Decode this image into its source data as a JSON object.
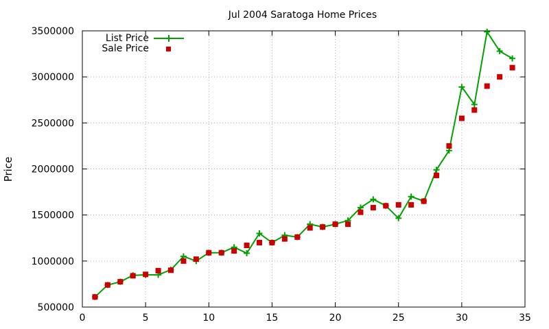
{
  "chart_data": {
    "type": "line",
    "title": "Jul 2004 Saratoga Home Prices",
    "xlabel": "",
    "ylabel": "Price",
    "xlim": [
      0,
      35
    ],
    "ylim": [
      500000,
      3500000
    ],
    "x_ticks": [
      0,
      5,
      10,
      15,
      20,
      25,
      30,
      35
    ],
    "y_ticks": [
      500000,
      1000000,
      1500000,
      2000000,
      2500000,
      3000000,
      3500000
    ],
    "grid": true,
    "legend_position": "top-left",
    "x": [
      1,
      2,
      3,
      4,
      5,
      6,
      7,
      8,
      9,
      10,
      11,
      12,
      13,
      14,
      15,
      16,
      17,
      18,
      19,
      20,
      21,
      22,
      23,
      24,
      25,
      26,
      27,
      28,
      29,
      30,
      31,
      32,
      33,
      34
    ],
    "series": [
      {
        "name": "List Price",
        "style": "line-points",
        "marker": "plus",
        "color": "#00a000",
        "values": [
          610000,
          740000,
          775000,
          845000,
          850000,
          850000,
          905000,
          1050000,
          1000000,
          1090000,
          1090000,
          1150000,
          1085000,
          1300000,
          1200000,
          1280000,
          1260000,
          1400000,
          1370000,
          1400000,
          1440000,
          1580000,
          1670000,
          1600000,
          1465000,
          1700000,
          1650000,
          1990000,
          2200000,
          2890000,
          2700000,
          3490000,
          3280000,
          3200000
        ]
      },
      {
        "name": "Sale Price",
        "style": "points",
        "marker": "square",
        "color": "#cc0000",
        "values": [
          610000,
          740000,
          775000,
          840000,
          855000,
          895000,
          900000,
          1000000,
          1020000,
          1090000,
          1090000,
          1110000,
          1170000,
          1200000,
          1200000,
          1240000,
          1260000,
          1360000,
          1370000,
          1400000,
          1400000,
          1530000,
          1580000,
          1600000,
          1610000,
          1610000,
          1650000,
          1930000,
          2250000,
          2550000,
          2640000,
          2900000,
          3000000,
          3100000
        ]
      }
    ]
  }
}
